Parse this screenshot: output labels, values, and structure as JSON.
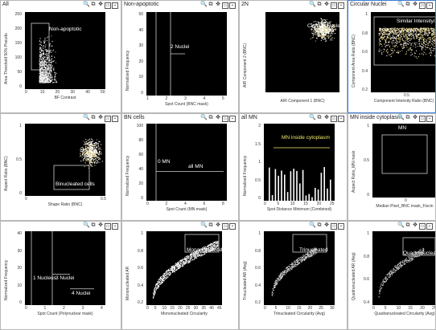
{
  "panels": [
    {
      "title": "All",
      "ylabel": "Area Threshold 50% Pseudo",
      "xlabel": "BF Contrast",
      "xticks": [
        "0",
        "10",
        "20",
        "30",
        "40",
        "50"
      ],
      "yticks": [
        "0",
        "50",
        "100",
        "150",
        "200",
        "250"
      ],
      "gate": "Non-apoptotic"
    },
    {
      "title": "Non-apoptotic",
      "ylabel": "Normalized Frequency",
      "xlabel": "Spot Count (BNC mask)",
      "xticks": [
        "1",
        "2",
        "3",
        "4",
        "5"
      ],
      "yticks": [
        "0",
        "10",
        "20",
        "30",
        "40",
        "50"
      ],
      "gate": "2 Nuclei"
    },
    {
      "title": "2N",
      "ylabel": "AIR Component 2 (BNC)",
      "xlabel": "AIR Component 1 (BNC)",
      "xticks": [],
      "yticks": [],
      "gate": "Circular Nuclei"
    },
    {
      "title": "Circular Nuclei",
      "ylabel": "Component Area Ratio (BNC)",
      "xlabel": "Component Intensity Ratio (BNC)",
      "xticks": [
        "0.5"
      ],
      "yticks": [
        "0.2",
        "0.4",
        "0.6",
        "0.8",
        "1"
      ],
      "gate": "Similar Intensity/Ar"
    },
    {
      "title": "",
      "ylabel": "Aspect Ratio (BNC)",
      "xlabel": "Shape Ratio (BNC)",
      "xticks": [
        "0",
        "0.5"
      ],
      "yticks": [
        "0",
        "0.5",
        "1"
      ],
      "gate": "Binucleated cells"
    },
    {
      "title": "BN cells",
      "ylabel": "Normalized Frequency",
      "xlabel": "Spot Count (MN mask)",
      "xticks": [
        "0",
        "2",
        "4",
        "6",
        "8"
      ],
      "yticks": [
        "0",
        "20",
        "40",
        "60",
        "80",
        "100"
      ],
      "gate": "0 MN",
      "gate2": "all MN"
    },
    {
      "title": "all MN",
      "ylabel": "Normalized Frequency",
      "xlabel": "Spot Distance Minimum (Combined)",
      "xticks": [
        "0",
        "5",
        "10",
        "15",
        "20",
        "25"
      ],
      "yticks": [
        "0",
        "0.5",
        "1",
        "1.5",
        "2"
      ],
      "gate": "MN inside cytoplasm"
    },
    {
      "title": "MN inside cytoplasm",
      "ylabel": "Aspect Ratio_MN mask",
      "xlabel": "Median Pixel_BNC mask_Fiscin",
      "xticks": [
        "0"
      ],
      "yticks": [
        "0",
        "0.5",
        "1"
      ],
      "gate": "MN"
    },
    {
      "title": "",
      "ylabel": "Normalized Frequency",
      "xlabel": "Spot Count (Polynuclear mask)",
      "xticks": [
        "0",
        "1",
        "2",
        "3",
        "4"
      ],
      "yticks": [
        "0",
        "10",
        "20",
        "30",
        "40"
      ],
      "gate": "1 Nucleus",
      "gate2": "3 Nuclei",
      "gate3": "4 Nuclei"
    },
    {
      "title": "",
      "ylabel": "Mononucleated AR",
      "xlabel": "Mononucleated Circularity",
      "xticks": [
        "0",
        "5",
        "10",
        "15",
        "20",
        "25",
        "30",
        "35",
        "40",
        "45"
      ],
      "yticks": [
        "0.2",
        "0.4",
        "0.6",
        "0.8",
        "1"
      ],
      "gate": "Mononucleated"
    },
    {
      "title": "",
      "ylabel": "Trinucleated AR (Avg)",
      "xlabel": "Trinucleated Circularity (Avg)",
      "xticks": [
        "0",
        "5",
        "10",
        "15",
        "20",
        "25",
        "30"
      ],
      "yticks": [
        "0.2",
        "0.4",
        "0.6",
        "0.8",
        "1"
      ],
      "gate": "Trinucleated"
    },
    {
      "title": "",
      "ylabel": "Quadranucleated AR (Avg)",
      "xlabel": "Quadranucleated Circularity (Avg)",
      "xticks": [
        "0",
        "5",
        "10",
        "15",
        "20",
        "25"
      ],
      "yticks": [
        "0.4",
        "0.6",
        "0.8",
        "1"
      ],
      "gate": "Quadranucleated"
    }
  ],
  "colors": {
    "plot_bg": "#000000",
    "gate_label": "#ffffff",
    "gate_label_yellow": "#f3ec6b",
    "selected_border": "#3a7bd5"
  }
}
